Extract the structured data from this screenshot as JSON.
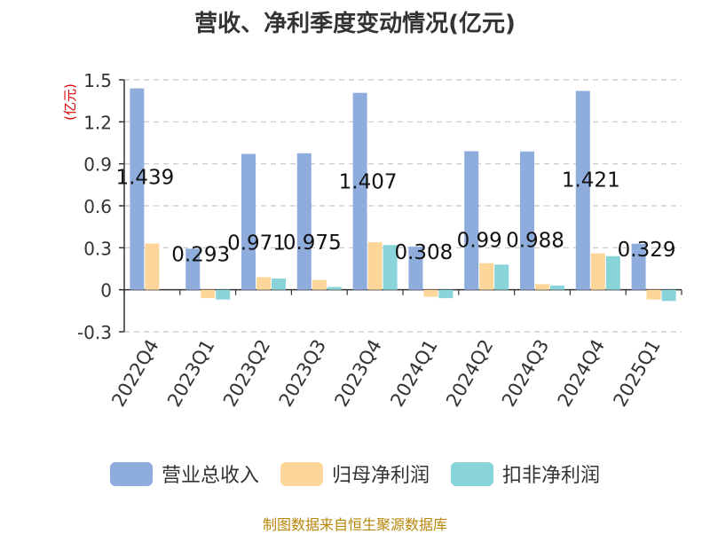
{
  "title": "营收、净利季度变动情况(亿元)",
  "source": "制图数据来自恒生聚源数据库",
  "chart_data": {
    "type": "bar",
    "unit_label": "(亿元)",
    "categories": [
      "2022Q4",
      "2023Q1",
      "2023Q2",
      "2023Q3",
      "2023Q4",
      "2024Q1",
      "2024Q2",
      "2024Q3",
      "2024Q4",
      "2025Q1"
    ],
    "y_ticks": [
      "1.5",
      "1.2",
      "0.9",
      "0.6",
      "0.3",
      "0",
      "-0.3"
    ],
    "y_tick_values": [
      1.5,
      1.2,
      0.9,
      0.6,
      0.3,
      0,
      -0.3
    ],
    "ylim": [
      -0.3,
      1.5
    ],
    "grid": true,
    "legend_position": "bottom",
    "series": [
      {
        "name": "营业总收入",
        "color": "#8eacdc",
        "values": [
          1.439,
          0.293,
          0.971,
          0.975,
          1.407,
          0.308,
          0.99,
          0.988,
          1.421,
          0.329
        ],
        "labels": [
          "1.439",
          "0.293",
          "0.971",
          "0.975",
          "1.407",
          "0.308",
          "0.99",
          "0.988",
          "1.421",
          "0.329"
        ]
      },
      {
        "name": "归母净利润",
        "color": "#ffd699",
        "values": [
          0.33,
          -0.06,
          0.09,
          0.07,
          0.34,
          -0.05,
          0.19,
          0.04,
          0.26,
          -0.07
        ]
      },
      {
        "name": "扣非净利润",
        "color": "#88d4d8",
        "values": [
          0.0,
          -0.07,
          0.08,
          0.02,
          0.32,
          -0.06,
          0.18,
          0.03,
          0.24,
          -0.08
        ]
      }
    ]
  }
}
